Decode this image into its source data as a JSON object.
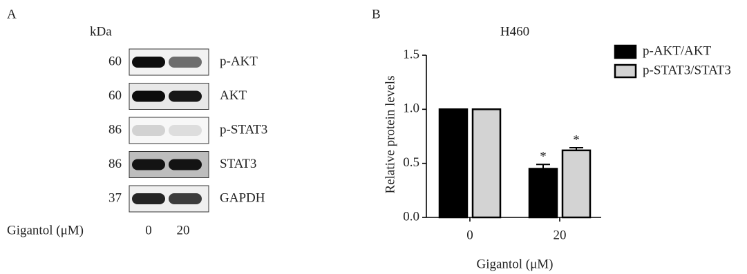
{
  "panel_a": {
    "label": "A",
    "unit": "kDa",
    "rows": [
      {
        "kda": "60",
        "name": "p-AKT"
      },
      {
        "kda": "60",
        "name": "AKT"
      },
      {
        "kda": "86",
        "name": "p-STAT3"
      },
      {
        "kda": "86",
        "name": "STAT3"
      },
      {
        "kda": "37",
        "name": "GAPDH"
      }
    ],
    "treatment": "Gigantol (μM)",
    "lanes": [
      "0",
      "20"
    ]
  },
  "chart_data": {
    "type": "bar",
    "panel_label": "B",
    "title": "H460",
    "y_label": "Relative protein levels",
    "x_label": "Gigantol (μM)",
    "categories": [
      "0",
      "20"
    ],
    "series": [
      {
        "name": "p-AKT/AKT",
        "color": "#000000",
        "values": [
          1.0,
          0.45
        ],
        "errors": [
          null,
          0.04
        ],
        "significance": [
          null,
          "*"
        ]
      },
      {
        "name": "p-STAT3/STAT3",
        "color": "#d3d3d3",
        "values": [
          1.0,
          0.62
        ],
        "errors": [
          null,
          0.025
        ],
        "significance": [
          null,
          "*"
        ]
      }
    ],
    "ylim": [
      0,
      1.5
    ],
    "yticks": [
      {
        "value": 0,
        "label": "0.0"
      },
      {
        "value": 0.5,
        "label": "0.5"
      },
      {
        "value": 1,
        "label": "1.0"
      },
      {
        "value": 1.5,
        "label": "1.5"
      }
    ],
    "legend": "upper right"
  }
}
